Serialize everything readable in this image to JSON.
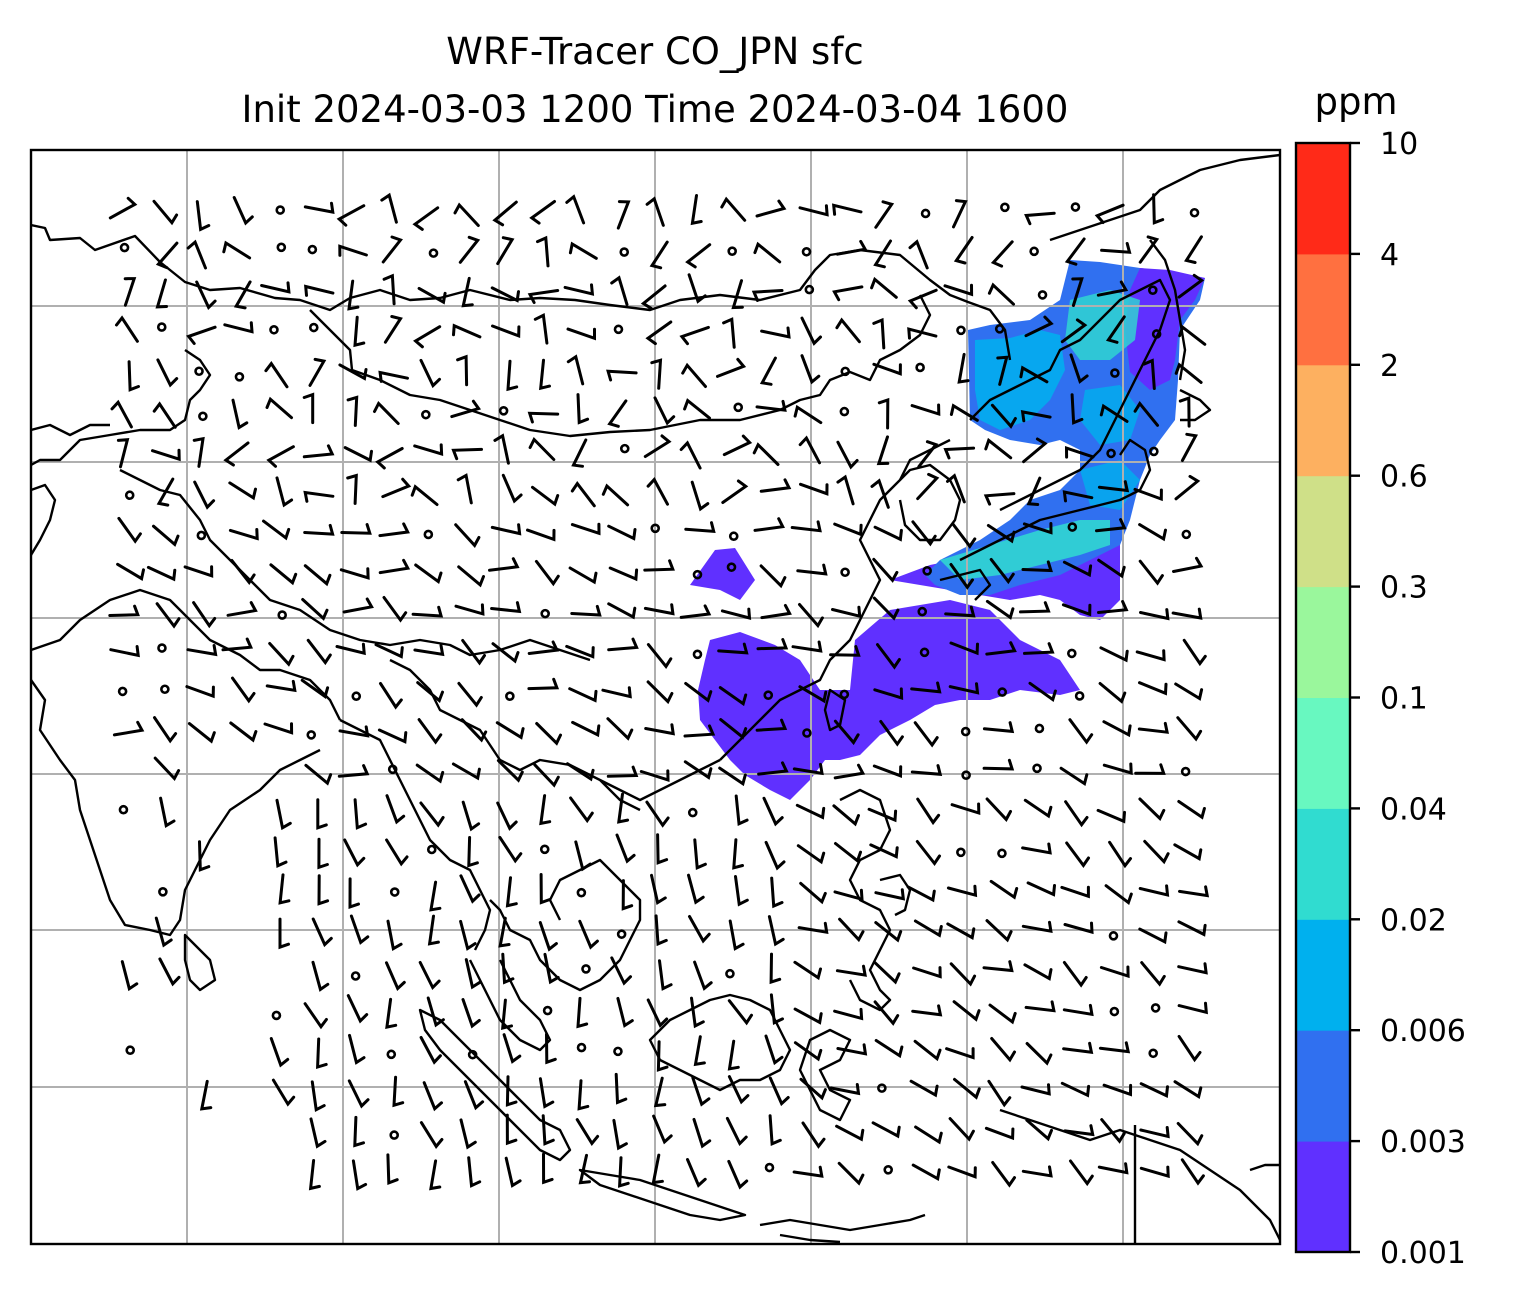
{
  "title": {
    "line1": "WRF-Tracer CO_JPN sfc",
    "line2": "Init 2024-03-03 1200 Time 2024-03-04 1600"
  },
  "colorbar": {
    "units": "ppm",
    "levels": [
      "0.001",
      "0.003",
      "0.006",
      "0.02",
      "0.04",
      "0.1",
      "0.3",
      "0.6",
      "2",
      "4",
      "10"
    ],
    "colors": [
      "#6030ff",
      "#3070f0",
      "#00b0ee",
      "#30dcd0",
      "#68f8c0",
      "#9af79c",
      "#cfe088",
      "#fdb060",
      "#ff7040",
      "#ff2a18"
    ]
  },
  "map": {
    "gridlines": true,
    "wind_barbs": true,
    "plume_colors": [
      "#6030ff",
      "#3070f0",
      "#00b0ee",
      "#30dcd0"
    ]
  }
}
